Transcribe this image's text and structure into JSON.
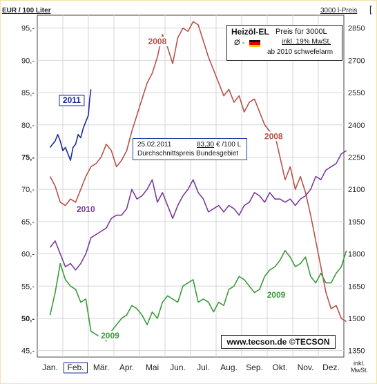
{
  "header": {
    "left_unit": "EUR / 100 Liter",
    "right_unit": "3000 l-Preis",
    "right_bracket": "["
  },
  "legend": {
    "title": "Heizöl-EL",
    "price_label": "Preis für 3000L",
    "avg_label": "Ø -",
    "vat_label": "inkl. 19% MwSt.",
    "low_sulfur": "ab 2010 schwefelarm",
    "flag_colors": [
      "#111111",
      "#dd0000",
      "#ffcc00"
    ]
  },
  "info_box": {
    "date": "25.02.2011",
    "value": "83,30",
    "unit": "€ /100 L",
    "description": "Durchschnittspreis Bundesgebiet"
  },
  "source": "www.tecson.de  ©TECSON",
  "bottom_right": [
    "inkl.",
    "MwSt."
  ],
  "chart_data": {
    "type": "line",
    "xlabel": "",
    "ylabel": "EUR / 100 Liter",
    "categories": [
      "Jan.",
      "Feb.",
      "Mär.",
      "Apr.",
      "Mai",
      "Jun.",
      "Jul.",
      "Aug.",
      "Sep.",
      "Okt.",
      "Nov.",
      "Dez."
    ],
    "highlight_month": "Feb.",
    "ylim": [
      44,
      97
    ],
    "left_ticks": [
      {
        "v": 95,
        "label": "95,-"
      },
      {
        "v": 90,
        "label": "90,-"
      },
      {
        "v": 85,
        "label": "85,-"
      },
      {
        "v": 80,
        "label": "80,-"
      },
      {
        "v": 75,
        "label": "75,-"
      },
      {
        "v": 70,
        "label": "70,-"
      },
      {
        "v": 65,
        "label": "65,-"
      },
      {
        "v": 60,
        "label": "60,-"
      },
      {
        "v": 55,
        "label": "55,-"
      },
      {
        "v": 50,
        "label": "50,-"
      },
      {
        "v": 45,
        "label": "45,-"
      }
    ],
    "bold_tick_values": [
      75,
      50
    ],
    "right_ticks": [
      {
        "v": 95,
        "label": "2850"
      },
      {
        "v": 90,
        "label": "2700"
      },
      {
        "v": 85,
        "label": "2550"
      },
      {
        "v": 80,
        "label": "2400"
      },
      {
        "v": 75,
        "label": "2250"
      },
      {
        "v": 70,
        "label": "2100"
      },
      {
        "v": 65,
        "label": "1950"
      },
      {
        "v": 60,
        "label": "1800"
      },
      {
        "v": 55,
        "label": "1650"
      },
      {
        "v": 50,
        "label": "1500"
      },
      {
        "v": 45,
        "label": "1350"
      }
    ],
    "grid": true,
    "series": [
      {
        "name": "2008",
        "color": "#b5524a",
        "points": [
          [
            0.0,
            72.0
          ],
          [
            0.2,
            70.5
          ],
          [
            0.4,
            68.0
          ],
          [
            0.6,
            67.5
          ],
          [
            0.8,
            68.5
          ],
          [
            1.0,
            68.0
          ],
          [
            1.2,
            70.0
          ],
          [
            1.4,
            72.0
          ],
          [
            1.6,
            73.5
          ],
          [
            1.8,
            74.0
          ],
          [
            2.0,
            75.0
          ],
          [
            2.2,
            77.0
          ],
          [
            2.4,
            76.0
          ],
          [
            2.6,
            73.5
          ],
          [
            2.8,
            74.5
          ],
          [
            3.0,
            76.0
          ],
          [
            3.2,
            79.0
          ],
          [
            3.4,
            81.5
          ],
          [
            3.6,
            84.0
          ],
          [
            3.8,
            86.5
          ],
          [
            4.0,
            88.0
          ],
          [
            4.2,
            90.5
          ],
          [
            4.4,
            94.0
          ],
          [
            4.6,
            92.0
          ],
          [
            4.8,
            89.5
          ],
          [
            5.0,
            93.5
          ],
          [
            5.2,
            95.0
          ],
          [
            5.4,
            94.5
          ],
          [
            5.6,
            96.0
          ],
          [
            5.8,
            95.5
          ],
          [
            6.0,
            93.0
          ],
          [
            6.2,
            90.5
          ],
          [
            6.4,
            88.5
          ],
          [
            6.6,
            86.5
          ],
          [
            6.8,
            84.5
          ],
          [
            7.0,
            85.5
          ],
          [
            7.2,
            83.5
          ],
          [
            7.4,
            84.5
          ],
          [
            7.6,
            82.0
          ],
          [
            7.8,
            83.5
          ],
          [
            8.0,
            84.0
          ],
          [
            8.2,
            82.0
          ],
          [
            8.4,
            80.0
          ],
          [
            8.6,
            79.0
          ],
          [
            8.8,
            78.5
          ],
          [
            9.0,
            75.0
          ],
          [
            9.2,
            71.5
          ],
          [
            9.4,
            73.5
          ],
          [
            9.6,
            70.0
          ],
          [
            9.8,
            72.0
          ],
          [
            10.0,
            69.5
          ],
          [
            10.2,
            66.0
          ],
          [
            10.4,
            62.0
          ],
          [
            10.6,
            58.0
          ],
          [
            10.8,
            54.0
          ],
          [
            11.0,
            51.5
          ],
          [
            11.2,
            52.0
          ],
          [
            11.4,
            50.0
          ],
          [
            11.6,
            49.5
          ]
        ],
        "label_positions": [
          {
            "text": "2008",
            "x": 4.2,
            "y": 92.5
          },
          {
            "text": "2008",
            "x": 8.75,
            "y": 77.8
          }
        ]
      },
      {
        "name": "2009",
        "color": "#3a9a3a",
        "points": [
          [
            0.0,
            50.5
          ],
          [
            0.2,
            54.0
          ],
          [
            0.4,
            58.5
          ],
          [
            0.6,
            56.0
          ],
          [
            0.8,
            55.0
          ],
          [
            1.0,
            54.5
          ],
          [
            1.2,
            52.5
          ],
          [
            1.4,
            53.0
          ],
          [
            1.6,
            48.0
          ],
          [
            1.8,
            47.5
          ],
          [
            2.0,
            47.0
          ],
          [
            2.2,
            46.5
          ],
          [
            2.4,
            48.0
          ],
          [
            2.6,
            49.0
          ],
          [
            2.8,
            50.0
          ],
          [
            3.0,
            50.5
          ],
          [
            3.2,
            52.0
          ],
          [
            3.4,
            51.5
          ],
          [
            3.6,
            50.5
          ],
          [
            3.8,
            49.0
          ],
          [
            4.0,
            51.0
          ],
          [
            4.2,
            50.0
          ],
          [
            4.4,
            52.5
          ],
          [
            4.6,
            53.5
          ],
          [
            4.8,
            53.0
          ],
          [
            5.0,
            52.5
          ],
          [
            5.2,
            55.0
          ],
          [
            5.4,
            55.5
          ],
          [
            5.6,
            56.0
          ],
          [
            5.8,
            52.5
          ],
          [
            6.0,
            53.0
          ],
          [
            6.2,
            52.5
          ],
          [
            6.4,
            51.0
          ],
          [
            6.6,
            52.5
          ],
          [
            6.8,
            52.0
          ],
          [
            7.0,
            54.5
          ],
          [
            7.2,
            55.0
          ],
          [
            7.4,
            56.5
          ],
          [
            7.6,
            56.0
          ],
          [
            7.8,
            55.0
          ],
          [
            8.0,
            54.0
          ],
          [
            8.2,
            54.5
          ],
          [
            8.4,
            56.5
          ],
          [
            8.6,
            57.5
          ],
          [
            8.8,
            58.0
          ],
          [
            9.0,
            59.0
          ],
          [
            9.2,
            60.5
          ],
          [
            9.4,
            59.5
          ],
          [
            9.6,
            58.0
          ],
          [
            9.8,
            58.5
          ],
          [
            10.0,
            59.5
          ],
          [
            10.2,
            56.5
          ],
          [
            10.4,
            55.5
          ],
          [
            10.6,
            57.0
          ],
          [
            10.8,
            55.5
          ],
          [
            11.0,
            55.5
          ],
          [
            11.2,
            57.0
          ],
          [
            11.4,
            58.0
          ],
          [
            11.6,
            60.5
          ]
        ],
        "label_positions": [
          {
            "text": "2009",
            "x": 2.35,
            "y": 46.9
          },
          {
            "text": "2009",
            "x": 8.85,
            "y": 53.2
          }
        ]
      },
      {
        "name": "2010",
        "color": "#7a3a9a",
        "points": [
          [
            0.0,
            61.0
          ],
          [
            0.2,
            62.0
          ],
          [
            0.4,
            60.0
          ],
          [
            0.6,
            58.0
          ],
          [
            0.8,
            58.5
          ],
          [
            1.0,
            57.5
          ],
          [
            1.2,
            58.5
          ],
          [
            1.4,
            60.0
          ],
          [
            1.6,
            62.5
          ],
          [
            1.8,
            63.0
          ],
          [
            2.0,
            63.5
          ],
          [
            2.2,
            64.0
          ],
          [
            2.4,
            65.5
          ],
          [
            2.6,
            66.0
          ],
          [
            2.8,
            66.0
          ],
          [
            3.0,
            67.0
          ],
          [
            3.2,
            70.0
          ],
          [
            3.4,
            68.5
          ],
          [
            3.6,
            69.0
          ],
          [
            3.8,
            70.0
          ],
          [
            4.0,
            71.5
          ],
          [
            4.2,
            68.0
          ],
          [
            4.4,
            69.5
          ],
          [
            4.6,
            67.5
          ],
          [
            4.8,
            65.5
          ],
          [
            5.0,
            67.5
          ],
          [
            5.2,
            69.0
          ],
          [
            5.4,
            70.0
          ],
          [
            5.6,
            71.5
          ],
          [
            5.8,
            69.5
          ],
          [
            6.0,
            68.5
          ],
          [
            6.2,
            66.5
          ],
          [
            6.4,
            67.0
          ],
          [
            6.6,
            67.5
          ],
          [
            6.8,
            66.5
          ],
          [
            7.0,
            67.5
          ],
          [
            7.2,
            67.0
          ],
          [
            7.4,
            66.0
          ],
          [
            7.6,
            67.5
          ],
          [
            7.8,
            68.0
          ],
          [
            8.0,
            69.5
          ],
          [
            8.2,
            69.0
          ],
          [
            8.4,
            68.0
          ],
          [
            8.6,
            69.5
          ],
          [
            8.8,
            68.5
          ],
          [
            9.0,
            68.5
          ],
          [
            9.2,
            68.0
          ],
          [
            9.4,
            68.5
          ],
          [
            9.6,
            67.5
          ],
          [
            9.8,
            68.5
          ],
          [
            10.0,
            69.0
          ],
          [
            10.2,
            70.0
          ],
          [
            10.4,
            72.0
          ],
          [
            10.6,
            71.5
          ],
          [
            10.8,
            73.0
          ],
          [
            11.0,
            73.5
          ],
          [
            11.2,
            74.0
          ],
          [
            11.4,
            75.5
          ],
          [
            11.6,
            76.0
          ]
        ],
        "label_positions": [
          {
            "text": "2010",
            "x": 1.4,
            "y": 66.5
          }
        ]
      },
      {
        "name": "2011",
        "color": "#1a2a9a",
        "points": [
          [
            0.0,
            76.5
          ],
          [
            0.1,
            77.0
          ],
          [
            0.2,
            77.5
          ],
          [
            0.3,
            78.5
          ],
          [
            0.4,
            77.5
          ],
          [
            0.5,
            76.0
          ],
          [
            0.6,
            76.5
          ],
          [
            0.7,
            75.5
          ],
          [
            0.8,
            74.5
          ],
          [
            0.9,
            76.5
          ],
          [
            1.0,
            77.0
          ],
          [
            1.1,
            78.5
          ],
          [
            1.2,
            78.0
          ],
          [
            1.3,
            79.5
          ],
          [
            1.4,
            80.5
          ],
          [
            1.5,
            81.5
          ],
          [
            1.55,
            84.0
          ],
          [
            1.6,
            85.5
          ]
        ],
        "label_positions": [
          {
            "text": "2011",
            "x": 0.85,
            "y": 83.4
          }
        ]
      }
    ]
  }
}
